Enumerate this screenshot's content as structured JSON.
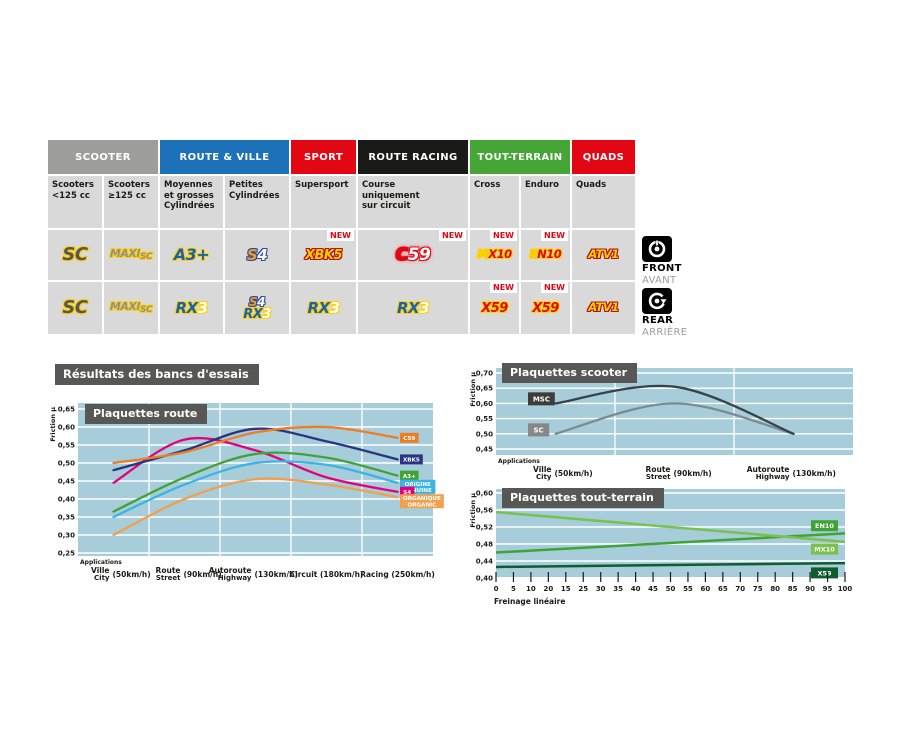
{
  "section_title": "Résultats des bancs d'essais",
  "new_label": "NEW",
  "side_labels": {
    "front": {
      "en": "FRONT",
      "fr": "AVANT"
    },
    "rear": {
      "en": "REAR",
      "fr": "ARRIÈRE"
    }
  },
  "table": {
    "groups": [
      {
        "label": "SCOOTER",
        "span": 2,
        "color": "#9d9d9c"
      },
      {
        "label": "ROUTE & VILLE",
        "span": 2,
        "color": "#1d71b8"
      },
      {
        "label": "SPORT",
        "span": 1,
        "color": "#e30613"
      },
      {
        "label": "ROUTE RACING",
        "span": 1,
        "color": "#1a1a18"
      },
      {
        "label": "TOUT-TERRAIN",
        "span": 2,
        "color": "#45a535"
      },
      {
        "label": "QUADS",
        "span": 1,
        "color": "#e30613"
      }
    ],
    "subheaders": [
      "Scooters\n<125 cc",
      "Scooters\n≥125 cc",
      "Moyennes\net grosses\nCylindrées",
      "Petites\nCylindrées",
      "Supersport",
      "Course\nuniquement\nsur circuit",
      "Cross",
      "Enduro",
      "Quads"
    ],
    "rows": [
      {
        "side": "front",
        "cells": [
          {
            "new": false,
            "logos": [
              {
                "cls": "lg-sc o-y",
                "parts": [
                  {
                    "t": "SC",
                    "cls": "c-slate"
                  }
                ]
              }
            ]
          },
          {
            "new": false,
            "logos": [
              {
                "cls": "lg-maxi o-y",
                "parts": [
                  {
                    "t": "MAXI",
                    "cls": "c-gray"
                  },
                  {
                    "t": "SC",
                    "cls": "c-gray sm"
                  }
                ]
              }
            ]
          },
          {
            "new": false,
            "logos": [
              {
                "cls": "lg-a3 o-y",
                "parts": [
                  {
                    "t": "A3+",
                    "cls": "c-blue"
                  }
                ]
              }
            ]
          },
          {
            "new": false,
            "logos": [
              {
                "cls": "lg-s4 o-b",
                "parts": [
                  {
                    "t": "S",
                    "cls": "c-orn"
                  },
                  {
                    "t": "4",
                    "cls": "c-white"
                  }
                ]
              }
            ]
          },
          {
            "new": true,
            "logos": [
              {
                "cls": "lg-xbk o-r",
                "parts": [
                  {
                    "t": "XBK5",
                    "cls": "c-gold"
                  }
                ]
              }
            ]
          },
          {
            "new": true,
            "logos": [
              {
                "cls": "lg-c59 o-rg",
                "parts": [
                  {
                    "t": "C",
                    "cls": "c-red"
                  },
                  {
                    "t": "59",
                    "cls": "c-white"
                  }
                ]
              }
            ]
          },
          {
            "new": true,
            "logos": [
              {
                "cls": "lg-small o-y",
                "parts": [
                  {
                    "t": "M",
                    "cls": "c-gold"
                  },
                  {
                    "t": "X10",
                    "cls": "c-red"
                  }
                ]
              }
            ]
          },
          {
            "new": true,
            "logos": [
              {
                "cls": "lg-small o-y",
                "parts": [
                  {
                    "t": "E",
                    "cls": "c-gold"
                  },
                  {
                    "t": "N10",
                    "cls": "c-red"
                  }
                ]
              }
            ]
          },
          {
            "new": false,
            "logos": [
              {
                "cls": "lg-small o-r",
                "parts": [
                  {
                    "t": "ATV1",
                    "cls": "c-gold"
                  }
                ]
              }
            ]
          }
        ]
      },
      {
        "side": "rear",
        "cells": [
          {
            "new": false,
            "logos": [
              {
                "cls": "lg-sc o-y",
                "parts": [
                  {
                    "t": "SC",
                    "cls": "c-slate"
                  }
                ]
              }
            ]
          },
          {
            "new": false,
            "logos": [
              {
                "cls": "lg-maxi o-y",
                "parts": [
                  {
                    "t": "MAXI",
                    "cls": "c-gray"
                  },
                  {
                    "t": "SC",
                    "cls": "c-gray sm"
                  }
                ]
              }
            ]
          },
          {
            "new": false,
            "logos": [
              {
                "cls": "lg-rx3 o-y",
                "parts": [
                  {
                    "t": "RX",
                    "cls": "c-blue"
                  },
                  {
                    "t": "3",
                    "cls": "c-white"
                  }
                ]
              }
            ]
          },
          {
            "new": false,
            "logos": [
              {
                "cls": "lg-s4s o-b",
                "parts": [
                  {
                    "t": "S",
                    "cls": "c-orn"
                  },
                  {
                    "t": "4",
                    "cls": "c-white"
                  }
                ]
              },
              {
                "cls": "lg-rx3s o-y",
                "parts": [
                  {
                    "t": "RX",
                    "cls": "c-blue"
                  },
                  {
                    "t": "3",
                    "cls": "c-white"
                  }
                ]
              }
            ]
          },
          {
            "new": false,
            "logos": [
              {
                "cls": "lg-rx3 o-y",
                "parts": [
                  {
                    "t": "RX",
                    "cls": "c-blue"
                  },
                  {
                    "t": "3",
                    "cls": "c-white"
                  }
                ]
              }
            ]
          },
          {
            "new": false,
            "logos": [
              {
                "cls": "lg-rx3 o-y",
                "parts": [
                  {
                    "t": "RX",
                    "cls": "c-blue"
                  },
                  {
                    "t": "3",
                    "cls": "c-white"
                  }
                ]
              }
            ]
          },
          {
            "new": true,
            "logos": [
              {
                "cls": "lg-x59 o-y",
                "parts": [
                  {
                    "t": "X59",
                    "cls": "c-red"
                  }
                ]
              }
            ]
          },
          {
            "new": true,
            "logos": [
              {
                "cls": "lg-x59 o-y",
                "parts": [
                  {
                    "t": "X59",
                    "cls": "c-red"
                  }
                ]
              }
            ]
          },
          {
            "new": false,
            "logos": [
              {
                "cls": "lg-small o-r",
                "parts": [
                  {
                    "t": "ATV1",
                    "cls": "c-gold"
                  }
                ]
              }
            ]
          }
        ]
      }
    ]
  },
  "chart_data": [
    {
      "id": "route",
      "type": "line",
      "title": "Plaquettes route",
      "ylabel": "Friction µ",
      "ylim": [
        0.25,
        0.65
      ],
      "ytick_labels": [
        "0,65",
        "0,60",
        "0,55",
        "0,50",
        "0,45",
        "0,40",
        "0,35",
        "0,30",
        "0,25"
      ],
      "axis_note": "Applications",
      "categories": [
        {
          "fr": "Ville",
          "en": "City",
          "speed": "(50km/h)"
        },
        {
          "fr": "Route",
          "en": "Street",
          "speed": "(90km/h)"
        },
        {
          "fr": "Autoroute",
          "en": "Highway",
          "speed": "(130km/h)"
        },
        {
          "fr": "Circuit",
          "en": "",
          "speed": "(180km/h)"
        },
        {
          "fr": "Racing",
          "en": "",
          "speed": "(250km/h)"
        }
      ],
      "series": [
        {
          "name": "C59",
          "color": "#ef7c23",
          "values": [
            0.5,
            0.53,
            0.585,
            0.6,
            0.57
          ],
          "label_lines": [
            "C59"
          ]
        },
        {
          "name": "XBK5",
          "color": "#283583",
          "values": [
            0.48,
            0.535,
            0.595,
            0.56,
            0.51
          ],
          "label_lines": [
            "XBK5"
          ]
        },
        {
          "name": "A3+",
          "color": "#3fa435",
          "values": [
            0.365,
            0.46,
            0.525,
            0.515,
            0.465
          ],
          "label_lines": [
            "A3+"
          ]
        },
        {
          "name": "ORIGINE/GENUINE",
          "color": "#3bb4e5",
          "values": [
            0.35,
            0.44,
            0.5,
            0.495,
            0.445
          ],
          "label_lines": [
            "ORIGINE",
            "GENUINE"
          ]
        },
        {
          "name": "S4",
          "color": "#e6007e",
          "values": [
            0.445,
            0.565,
            0.535,
            0.46,
            0.42
          ],
          "label_lines": [
            "S4"
          ]
        },
        {
          "name": "ORGANIQUE/ORGANIC",
          "color": "#f0a04e",
          "values": [
            0.3,
            0.4,
            0.455,
            0.44,
            0.405
          ],
          "label_lines": [
            "ORGANIQUE",
            "ORGANIC"
          ]
        }
      ]
    },
    {
      "id": "scooter",
      "type": "line",
      "title": "Plaquettes scooter",
      "ylabel": "Friction µ",
      "ylim": [
        0.45,
        0.7
      ],
      "ytick_labels": [
        "0,70",
        "0,65",
        "0,60",
        "0,55",
        "0,50",
        "0,45"
      ],
      "axis_note": "Applications",
      "categories": [
        {
          "fr": "Ville",
          "en": "City",
          "speed": "(50km/h)"
        },
        {
          "fr": "Route",
          "en": "Street",
          "speed": "(90km/h)"
        },
        {
          "fr": "Autoroute",
          "en": "Highway",
          "speed": "(130km/h)"
        }
      ],
      "series": [
        {
          "name": "MSC",
          "color": "#37424a",
          "values": [
            0.6,
            0.655,
            0.5
          ],
          "badge": {
            "text": "MSC",
            "bg": "#3c3c3b",
            "value": 0.615
          }
        },
        {
          "name": "SC",
          "color": "#7d8b91",
          "values": [
            0.5,
            0.6,
            0.5
          ],
          "badge": {
            "text": "SC",
            "bg": "#878787",
            "value": 0.513
          }
        }
      ]
    },
    {
      "id": "terrain",
      "type": "line",
      "title": "Plaquettes tout-terrain",
      "ylabel": "Friction µ",
      "xlabel": "Freinage linéaire",
      "ylim": [
        0.4,
        0.6
      ],
      "ytick_labels": [
        "0,60",
        "0,56",
        "0,52",
        "0,48",
        "0,44",
        "0,40"
      ],
      "x_range": [
        0,
        100
      ],
      "xtick_labels": [
        "0",
        "5",
        "10",
        "20",
        "15",
        "25",
        "30",
        "35",
        "40",
        "45",
        "50",
        "55",
        "60",
        "65",
        "70",
        "75",
        "80",
        "85",
        "90",
        "95",
        "100"
      ],
      "series": [
        {
          "name": "EN10",
          "color": "#3fa435",
          "values_xy": [
            [
              0,
              0.46
            ],
            [
              100,
              0.505
            ]
          ],
          "badge_value": 0.523
        },
        {
          "name": "MX10",
          "color": "#7cc14e",
          "values_xy": [
            [
              0,
              0.555
            ],
            [
              100,
              0.485
            ]
          ],
          "badge_value": 0.468
        },
        {
          "name": "X59",
          "color": "#0f5c2e",
          "values_xy": [
            [
              0,
              0.426
            ],
            [
              100,
              0.435
            ]
          ],
          "badge_value": 0.412
        }
      ]
    }
  ]
}
